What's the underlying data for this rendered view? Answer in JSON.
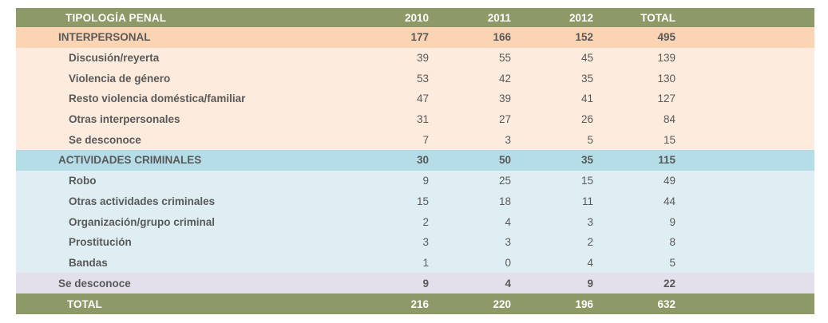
{
  "table": {
    "header": {
      "label": "TIPOLOGÍA PENAL",
      "values": [
        "2010",
        "2011",
        "2012",
        "TOTAL"
      ]
    },
    "rows": [
      {
        "label": "INTERPERSONAL",
        "values": [
          "177",
          "166",
          "152",
          "495"
        ]
      },
      {
        "label": "Discusión/reyerta",
        "values": [
          "39",
          "55",
          "45",
          "139"
        ]
      },
      {
        "label": "Violencia de género",
        "values": [
          "53",
          "42",
          "35",
          "130"
        ]
      },
      {
        "label": "Resto violencia doméstica/familiar",
        "values": [
          "47",
          "39",
          "41",
          "127"
        ]
      },
      {
        "label": "Otras interpersonales",
        "values": [
          "31",
          "27",
          "26",
          "84"
        ]
      },
      {
        "label": "Se desconoce",
        "values": [
          "7",
          "3",
          "5",
          "15"
        ]
      },
      {
        "label": "ACTIVIDADES CRIMINALES",
        "values": [
          "30",
          "50",
          "35",
          "115"
        ]
      },
      {
        "label": "Robo",
        "values": [
          "9",
          "25",
          "15",
          "49"
        ]
      },
      {
        "label": "Otras actividades criminales",
        "values": [
          "15",
          "18",
          "11",
          "44"
        ]
      },
      {
        "label": "Organización/grupo criminal",
        "values": [
          "2",
          "4",
          "3",
          "9"
        ]
      },
      {
        "label": "Prostitución",
        "values": [
          "3",
          "3",
          "2",
          "8"
        ]
      },
      {
        "label": "Bandas",
        "values": [
          "1",
          "0",
          "4",
          "5"
        ]
      },
      {
        "label": "Se desconoce",
        "values": [
          "9",
          "4",
          "9",
          "22"
        ]
      },
      {
        "label": "TOTAL",
        "values": [
          "216",
          "220",
          "196",
          "632"
        ]
      }
    ],
    "colors": {
      "header_bg": "#8d9966",
      "header_text": "#ffffff",
      "interpersonal_category_bg": "#fbd4b3",
      "interpersonal_sub_bg": "#fdecdd",
      "criminal_category_bg": "#b5dde8",
      "criminal_sub_bg": "#dfeef3",
      "unknown_row_bg": "#e3dfeb",
      "total_bg": "#8d9966",
      "body_text": "#595959"
    }
  }
}
